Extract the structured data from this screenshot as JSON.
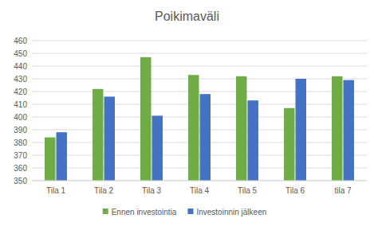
{
  "chart_data": {
    "type": "bar",
    "title": "Poikimaväli",
    "categories": [
      "Tila 1",
      "Tila 2",
      "Tila 3",
      "Tila 4",
      "Tila 5",
      "Tila 6",
      "tila 7"
    ],
    "series": [
      {
        "name": "Ennen investointia",
        "color": "#70ad47",
        "values": [
          384,
          422,
          447,
          433,
          432,
          407,
          432
        ]
      },
      {
        "name": "Investoinnin jälkeen",
        "color": "#4472c4",
        "values": [
          388,
          416,
          401,
          418,
          413,
          430,
          429
        ]
      }
    ],
    "ylim": [
      350,
      460
    ],
    "yticks": [
      350,
      360,
      370,
      380,
      390,
      400,
      410,
      420,
      430,
      440,
      450,
      460
    ],
    "grid": true,
    "legend": "bottom"
  }
}
